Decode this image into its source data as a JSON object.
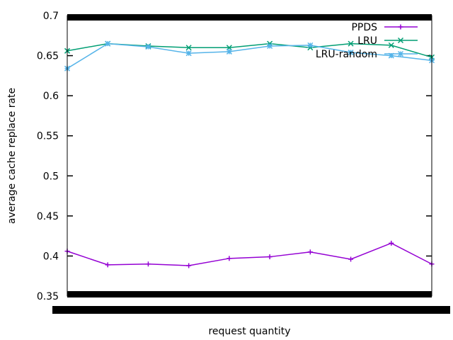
{
  "chart_data": {
    "type": "line",
    "title": "",
    "xlabel": "request quantity",
    "ylabel": "average cache replace rate",
    "ylim": [
      0.35,
      0.7
    ],
    "yticks": [
      0.35,
      0.4,
      0.45,
      0.5,
      0.55,
      0.6,
      0.65,
      0.7
    ],
    "ytick_labels": [
      "0.35",
      "0.4",
      "0.45",
      "0.5",
      "0.55",
      "0.6",
      "0.65",
      "0.7"
    ],
    "x_points": 10,
    "legend_position": "top-right",
    "grid": false,
    "series": [
      {
        "name": "PPDS",
        "color": "#9400d3",
        "marker": "plus",
        "values": [
          0.406,
          0.389,
          0.39,
          0.388,
          0.397,
          0.399,
          0.405,
          0.396,
          0.416,
          0.39
        ]
      },
      {
        "name": "LRU",
        "color": "#009e73",
        "marker": "x",
        "values": [
          0.656,
          0.665,
          0.662,
          0.66,
          0.66,
          0.665,
          0.66,
          0.665,
          0.663,
          0.648
        ]
      },
      {
        "name": "LRU-random",
        "color": "#56b4e9",
        "marker": "star",
        "values": [
          0.634,
          0.665,
          0.661,
          0.653,
          0.655,
          0.662,
          0.663,
          0.654,
          0.65,
          0.644
        ]
      }
    ]
  }
}
